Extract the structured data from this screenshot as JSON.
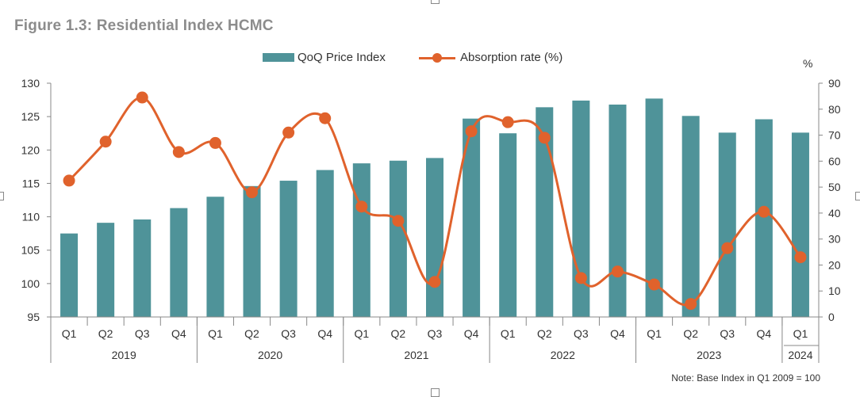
{
  "title": "Figure 1.3: Residential Index HCMC",
  "note": "Note: Base Index in Q1 2009 = 100",
  "right_axis_unit": "%",
  "colors": {
    "bar": "#4f9399",
    "line": "#e0622c",
    "axis": "#888888"
  },
  "chart_data": {
    "type": "bar",
    "categories": [
      "Q1",
      "Q2",
      "Q3",
      "Q4",
      "Q1",
      "Q2",
      "Q3",
      "Q4",
      "Q1",
      "Q2",
      "Q3",
      "Q4",
      "Q1",
      "Q2",
      "Q3",
      "Q4",
      "Q1",
      "Q2",
      "Q3",
      "Q4",
      "Q1"
    ],
    "groups": [
      {
        "label": "2019",
        "count": 4
      },
      {
        "label": "2020",
        "count": 4
      },
      {
        "label": "2021",
        "count": 4
      },
      {
        "label": "2022",
        "count": 4
      },
      {
        "label": "2023",
        "count": 4
      },
      {
        "label": "2024",
        "count": 1
      }
    ],
    "series": [
      {
        "name": "QoQ Price Index",
        "type": "bar",
        "axis": "left",
        "values": [
          107.5,
          109.1,
          109.6,
          111.3,
          113.0,
          114.6,
          115.4,
          117.0,
          118.0,
          118.4,
          118.8,
          124.7,
          122.5,
          126.4,
          127.4,
          126.8,
          127.7,
          125.1,
          122.6,
          124.6,
          122.6
        ]
      },
      {
        "name": "Absorption rate (%)",
        "type": "line",
        "axis": "right",
        "values": [
          52.5,
          67.5,
          84.5,
          63.5,
          67,
          48,
          71,
          76.5,
          42.5,
          37,
          13.5,
          71.5,
          75,
          69,
          15,
          17.5,
          12.5,
          5,
          26.5,
          40.5,
          23
        ]
      }
    ],
    "y_left": {
      "min": 95,
      "max": 130,
      "ticks": [
        130,
        125,
        120,
        115,
        110,
        105,
        100,
        95
      ]
    },
    "y_right": {
      "min": 0,
      "max": 90,
      "ticks": [
        90,
        80,
        70,
        60,
        50,
        40,
        30,
        20,
        10,
        0
      ]
    },
    "legend_position": "top-center",
    "grid": false
  }
}
